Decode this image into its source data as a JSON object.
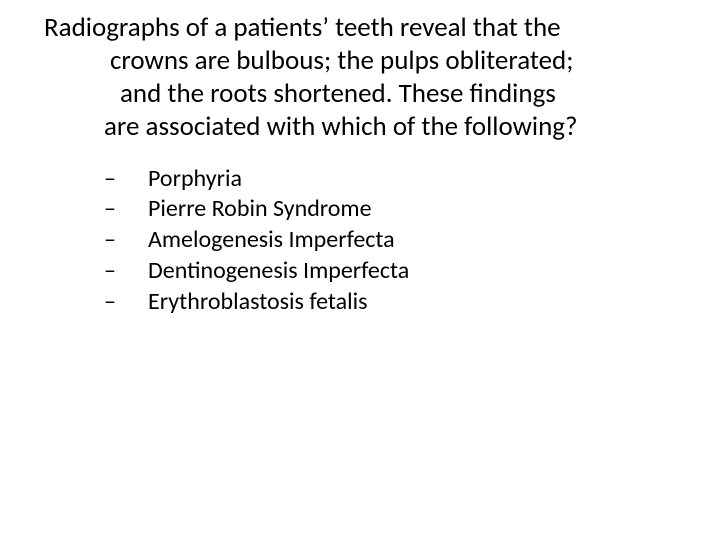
{
  "slide": {
    "background_color": "#ffffff",
    "text_color": "#000000",
    "font_family": "Calibri",
    "question": {
      "fontsize_pt": 20,
      "lines": [
        "Radiographs of a patients’ teeth reveal that the",
        "crowns are bulbous; the pulps obliterated;",
        "and the roots shortened.  These findings",
        "are associated with which of the following?"
      ]
    },
    "options": {
      "bullet": "–",
      "fontsize_pt": 18,
      "items": [
        "Porphyria",
        "Pierre Robin Syndrome",
        "Amelogenesis Imperfecta",
        "Dentinogenesis Imperfecta",
        "Erythroblastosis fetalis"
      ]
    }
  }
}
